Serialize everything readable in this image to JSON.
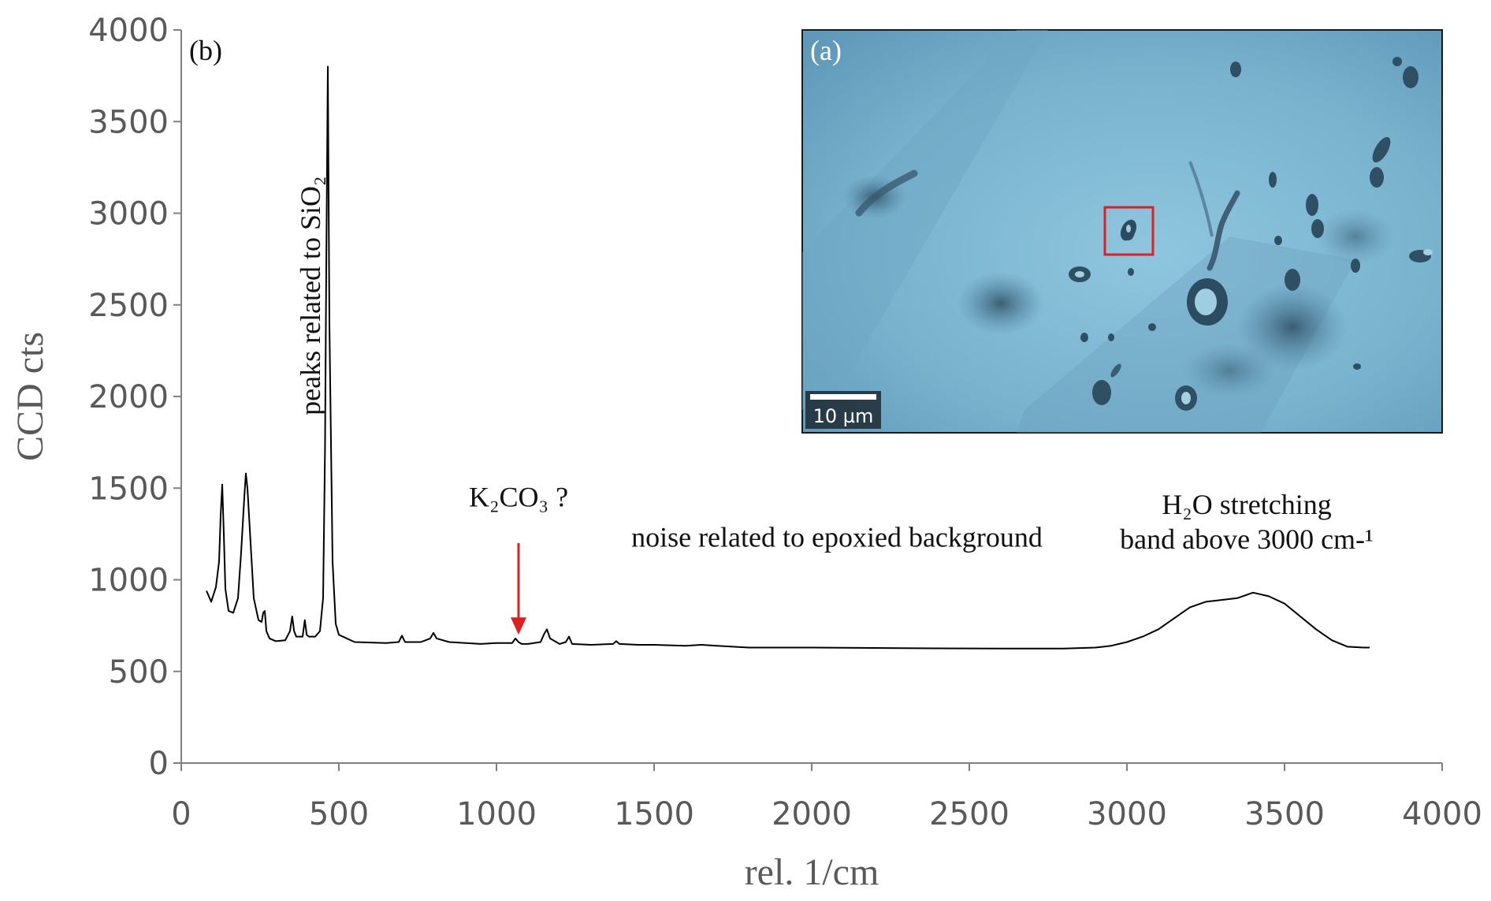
{
  "chart_data": {
    "type": "line",
    "title": "",
    "panel_label": "(b)",
    "xlabel": "rel. 1/cm",
    "ylabel": "CCD cts",
    "xlim": [
      0,
      4000
    ],
    "ylim": [
      0,
      4000
    ],
    "x_ticks": [
      0,
      500,
      1000,
      1500,
      2000,
      2500,
      3000,
      3500,
      4000
    ],
    "y_ticks": [
      0,
      500,
      1000,
      1500,
      2000,
      2500,
      3000,
      3500,
      4000
    ],
    "grid": false,
    "series": [
      {
        "color": "#000000",
        "x": [
          80,
          95,
          110,
          120,
          125,
          130,
          135,
          140,
          150,
          165,
          180,
          190,
          200,
          205,
          210,
          220,
          230,
          245,
          255,
          260,
          265,
          270,
          280,
          300,
          330,
          345,
          352,
          358,
          365,
          385,
          392,
          398,
          405,
          425,
          440,
          450,
          456,
          460,
          465,
          470,
          480,
          490,
          500,
          550,
          650,
          690,
          700,
          710,
          760,
          790,
          800,
          810,
          850,
          950,
          1000,
          1050,
          1060,
          1070,
          1080,
          1100,
          1140,
          1150,
          1160,
          1170,
          1200,
          1220,
          1230,
          1240,
          1300,
          1370,
          1380,
          1390,
          1450,
          1500,
          1600,
          1650,
          1700,
          1800,
          2000,
          2200,
          2400,
          2600,
          2800,
          2900,
          2950,
          3000,
          3050,
          3100,
          3150,
          3200,
          3250,
          3300,
          3350,
          3400,
          3450,
          3500,
          3550,
          3600,
          3650,
          3700,
          3750,
          3770
        ],
        "y": [
          940,
          880,
          960,
          1100,
          1350,
          1520,
          1250,
          950,
          830,
          820,
          900,
          1150,
          1450,
          1580,
          1500,
          1200,
          900,
          780,
          770,
          820,
          830,
          720,
          680,
          665,
          670,
          720,
          800,
          720,
          690,
          690,
          780,
          700,
          690,
          690,
          720,
          900,
          1700,
          2700,
          3800,
          2400,
          1100,
          760,
          700,
          660,
          655,
          660,
          695,
          660,
          660,
          680,
          710,
          680,
          660,
          650,
          655,
          655,
          680,
          660,
          650,
          650,
          660,
          700,
          730,
          680,
          650,
          660,
          690,
          650,
          645,
          650,
          665,
          650,
          645,
          645,
          640,
          645,
          640,
          630,
          630,
          628,
          626,
          625,
          625,
          630,
          640,
          660,
          690,
          730,
          790,
          850,
          880,
          890,
          900,
          930,
          910,
          870,
          800,
          730,
          670,
          635,
          630,
          630
        ]
      }
    ],
    "annotations": [
      {
        "text": "peaks related to SiO₂",
        "x": 440,
        "y": 2550,
        "rotation": -90
      },
      {
        "text": "K₂CO₃ ?",
        "x": 1070,
        "y": 1400
      },
      {
        "text": "noise related to epoxied background",
        "x": 2080,
        "y": 1180
      },
      {
        "text": "H₂O stretching",
        "x": 3380,
        "y": 1360
      },
      {
        "text": "band above 3000 cm-¹",
        "x": 3380,
        "y": 1170
      }
    ],
    "arrow": {
      "x": 1070,
      "y_from": 1200,
      "y_to": 700,
      "color": "#e02020"
    },
    "inset": {
      "label": "(a)",
      "scale_bar": "10 µm"
    }
  }
}
